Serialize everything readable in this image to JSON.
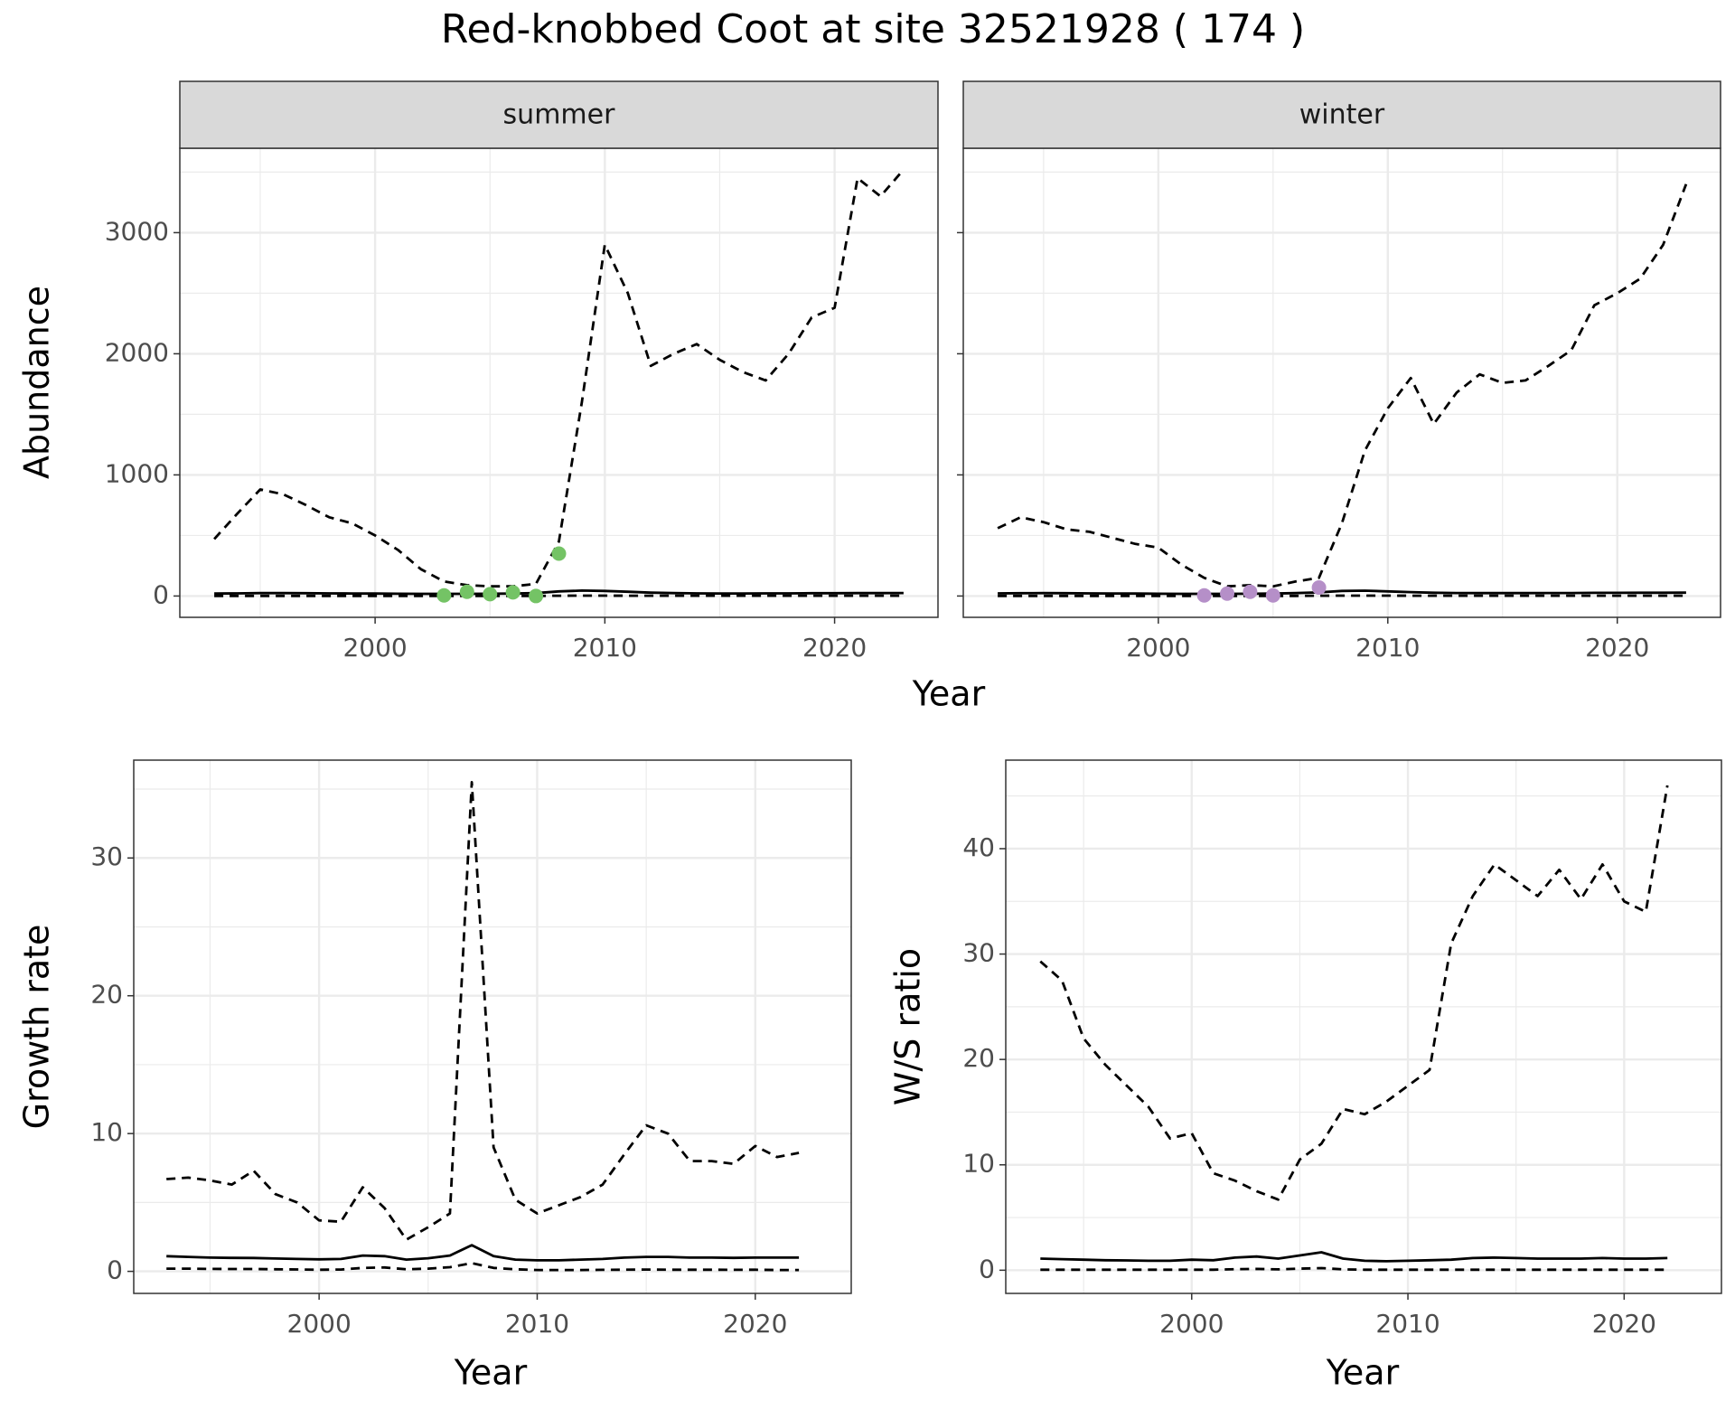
{
  "title": "Red-knobbed Coot at site 32521928 ( 174 )",
  "chart_data": [
    {
      "type": "line",
      "strip": "summer",
      "ylabel": "Abundance",
      "xlabel": "Year",
      "xlim": [
        1991.5,
        2024.5
      ],
      "ylim": [
        -176,
        3697
      ],
      "xticks": [
        2000,
        2010,
        2020
      ],
      "yticks": [
        0,
        1000,
        2000,
        3000
      ],
      "minor_xticks": [
        1995,
        2005,
        2015
      ],
      "minor_yticks": [
        500,
        1500,
        2500,
        3500
      ],
      "grid": true,
      "x": [
        1993,
        1994,
        1995,
        1996,
        1997,
        1998,
        1999,
        2000,
        2001,
        2002,
        2003,
        2004,
        2005,
        2006,
        2007,
        2008,
        2009,
        2010,
        2011,
        2012,
        2013,
        2014,
        2015,
        2016,
        2017,
        2018,
        2019,
        2020,
        2021,
        2022,
        2023
      ],
      "series": [
        {
          "style": "dashed",
          "color": "#000000",
          "values": [
            470,
            680,
            880,
            840,
            750,
            650,
            600,
            500,
            380,
            220,
            120,
            90,
            80,
            80,
            100,
            450,
            1600,
            2900,
            2500,
            1900,
            2000,
            2080,
            1950,
            1850,
            1780,
            2000,
            2300,
            2380,
            3450,
            3300,
            3520
          ]
        },
        {
          "style": "solid",
          "color": "#000000",
          "values": [
            20,
            22,
            24,
            24,
            23,
            22,
            21,
            20,
            19,
            18,
            18,
            18,
            19,
            20,
            24,
            38,
            45,
            42,
            35,
            28,
            24,
            22,
            21,
            21,
            22,
            22,
            23,
            23,
            24,
            24,
            25
          ]
        },
        {
          "style": "dashed",
          "color": "#000000",
          "values": [
            1,
            1,
            1,
            1,
            1,
            1,
            1,
            1,
            1,
            1,
            1,
            1,
            1,
            1,
            1,
            2,
            3,
            3,
            2,
            2,
            2,
            2,
            2,
            2,
            2,
            2,
            2,
            2,
            2,
            2,
            2
          ]
        },
        {
          "style": "points",
          "color": "#74c365",
          "x": [
            2003,
            2004,
            2005,
            2006,
            2007,
            2008
          ],
          "values": [
            5,
            35,
            15,
            30,
            0,
            350
          ]
        }
      ]
    },
    {
      "type": "line",
      "strip": "winter",
      "show_ytick_labels": false,
      "xlim": [
        1991.5,
        2024.5
      ],
      "ylim": [
        -176,
        3697
      ],
      "xticks": [
        2000,
        2010,
        2020
      ],
      "yticks": [
        0,
        1000,
        2000,
        3000
      ],
      "minor_xticks": [
        1995,
        2005,
        2015
      ],
      "minor_yticks": [
        500,
        1500,
        2500,
        3500
      ],
      "grid": true,
      "x": [
        1993,
        1994,
        1995,
        1996,
        1997,
        1998,
        1999,
        2000,
        2001,
        2002,
        2003,
        2004,
        2005,
        2006,
        2007,
        2008,
        2009,
        2010,
        2011,
        2012,
        2013,
        2014,
        2015,
        2016,
        2017,
        2018,
        2019,
        2020,
        2021,
        2022,
        2023
      ],
      "series": [
        {
          "style": "dashed",
          "color": "#000000",
          "values": [
            560,
            650,
            610,
            550,
            530,
            480,
            430,
            400,
            260,
            150,
            80,
            90,
            80,
            120,
            150,
            600,
            1200,
            1550,
            1800,
            1420,
            1680,
            1830,
            1760,
            1780,
            1900,
            2030,
            2400,
            2500,
            2620,
            2900,
            3400
          ]
        },
        {
          "style": "solid",
          "color": "#000000",
          "values": [
            22,
            23,
            24,
            23,
            22,
            21,
            20,
            19,
            18,
            18,
            18,
            19,
            20,
            24,
            30,
            42,
            44,
            38,
            32,
            27,
            25,
            24,
            24,
            24,
            25,
            25,
            26,
            26,
            27,
            27,
            28
          ]
        },
        {
          "style": "dashed",
          "color": "#000000",
          "values": [
            1,
            1,
            1,
            1,
            1,
            1,
            1,
            1,
            1,
            1,
            1,
            1,
            1,
            1,
            2,
            3,
            3,
            3,
            2,
            2,
            2,
            2,
            2,
            2,
            2,
            2,
            2,
            2,
            2,
            2,
            2
          ]
        },
        {
          "style": "points",
          "color": "#b58fc8",
          "x": [
            2002,
            2003,
            2004,
            2005,
            2007
          ],
          "values": [
            5,
            20,
            35,
            5,
            70
          ]
        }
      ]
    },
    {
      "type": "line",
      "ylabel": "Growth rate",
      "xlabel": "Year",
      "xlim": [
        1991.5,
        2024.4
      ],
      "ylim": [
        -1.6,
        37.1
      ],
      "xticks": [
        2000,
        2010,
        2020
      ],
      "yticks": [
        0,
        10,
        20,
        30
      ],
      "minor_xticks": [
        1995,
        2005,
        2015
      ],
      "minor_yticks": [
        5,
        15,
        25,
        35
      ],
      "grid": true,
      "x": [
        1993,
        1994,
        1995,
        1996,
        1997,
        1998,
        1999,
        2000,
        2001,
        2002,
        2003,
        2004,
        2005,
        2006,
        2007,
        2008,
        2009,
        2010,
        2011,
        2012,
        2013,
        2014,
        2015,
        2016,
        2017,
        2018,
        2019,
        2020,
        2021,
        2022
      ],
      "series": [
        {
          "style": "dashed",
          "color": "#000000",
          "values": [
            6.7,
            6.8,
            6.6,
            6.3,
            7.3,
            5.6,
            5.0,
            3.7,
            3.6,
            6.1,
            4.6,
            2.3,
            3.2,
            4.2,
            35.5,
            9.0,
            5.2,
            4.2,
            4.8,
            5.4,
            6.3,
            8.5,
            10.6,
            10.0,
            8.0,
            8.0,
            7.8,
            9.1,
            8.3,
            8.6
          ]
        },
        {
          "style": "solid",
          "color": "#000000",
          "values": [
            1.1,
            1.05,
            1.0,
            0.98,
            0.97,
            0.93,
            0.9,
            0.87,
            0.9,
            1.15,
            1.1,
            0.85,
            0.95,
            1.15,
            1.9,
            1.1,
            0.85,
            0.8,
            0.8,
            0.85,
            0.9,
            1.0,
            1.05,
            1.05,
            1.0,
            1.0,
            0.98,
            1.0,
            1.0,
            1.0
          ]
        },
        {
          "style": "dashed",
          "color": "#000000",
          "values": [
            0.2,
            0.2,
            0.18,
            0.17,
            0.17,
            0.15,
            0.14,
            0.12,
            0.13,
            0.25,
            0.28,
            0.15,
            0.2,
            0.3,
            0.6,
            0.25,
            0.15,
            0.1,
            0.1,
            0.1,
            0.11,
            0.12,
            0.13,
            0.12,
            0.12,
            0.12,
            0.11,
            0.12,
            0.1,
            0.1
          ]
        }
      ]
    },
    {
      "type": "line",
      "ylabel": "W/S ratio",
      "xlabel": "Year",
      "xlim": [
        1991.4,
        2024.5
      ],
      "ylim": [
        -2.2,
        48.4
      ],
      "xticks": [
        2000,
        2010,
        2020
      ],
      "yticks": [
        0,
        10,
        20,
        30,
        40
      ],
      "minor_xticks": [
        1995,
        2005,
        2015
      ],
      "minor_yticks": [
        5,
        15,
        25,
        35,
        45
      ],
      "grid": true,
      "x": [
        1993,
        1994,
        1995,
        1996,
        1997,
        1998,
        1999,
        2000,
        2001,
        2002,
        2003,
        2004,
        2005,
        2006,
        2007,
        2008,
        2009,
        2010,
        2011,
        2012,
        2013,
        2014,
        2015,
        2016,
        2017,
        2018,
        2019,
        2020,
        2021,
        2022
      ],
      "series": [
        {
          "style": "dashed",
          "color": "#000000",
          "values": [
            29.3,
            27.5,
            22,
            19.5,
            17.5,
            15.5,
            12.5,
            13,
            9.2,
            8.5,
            7.5,
            6.7,
            10.5,
            12,
            15.3,
            14.8,
            16,
            17.5,
            19,
            31,
            35.5,
            38.5,
            37,
            35.5,
            38,
            35.2,
            38.5,
            35,
            34,
            46
          ]
        },
        {
          "style": "solid",
          "color": "#000000",
          "values": [
            1.1,
            1.05,
            1.0,
            0.95,
            0.93,
            0.9,
            0.9,
            1.0,
            0.95,
            1.2,
            1.3,
            1.1,
            1.4,
            1.7,
            1.1,
            0.9,
            0.85,
            0.9,
            0.95,
            1.0,
            1.15,
            1.2,
            1.15,
            1.1,
            1.1,
            1.1,
            1.15,
            1.1,
            1.1,
            1.15
          ]
        },
        {
          "style": "dashed",
          "color": "#000000",
          "values": [
            0.05,
            0.05,
            0.05,
            0.05,
            0.05,
            0.05,
            0.05,
            0.05,
            0.05,
            0.1,
            0.12,
            0.08,
            0.15,
            0.2,
            0.08,
            0.05,
            0.05,
            0.05,
            0.05,
            0.05,
            0.05,
            0.05,
            0.05,
            0.05,
            0.05,
            0.05,
            0.05,
            0.05,
            0.05,
            0.05
          ]
        }
      ]
    }
  ]
}
